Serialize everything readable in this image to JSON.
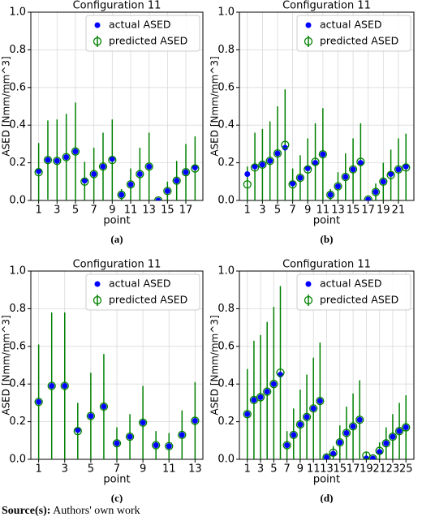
{
  "chart_data": [
    {
      "type": "errorbar",
      "title": "Configuration 11",
      "xlabel": "point",
      "ylabel": "ASED [Nmm/mm^3]",
      "caption": "(a)",
      "x": [
        1,
        2,
        3,
        4,
        5,
        6,
        7,
        8,
        9,
        10,
        11,
        12,
        13,
        14,
        15,
        16,
        17,
        18
      ],
      "series": [
        {
          "name": "actual ASED",
          "color": "#0000ff",
          "values": [
            0.155,
            0.215,
            0.21,
            0.23,
            0.26,
            0.105,
            0.14,
            0.18,
            0.22,
            0.03,
            0.085,
            0.14,
            0.18,
            0.0,
            0.05,
            0.105,
            0.15,
            0.175
          ]
        },
        {
          "name": "predicted ASED",
          "color": "#008000",
          "values": [
            0.15,
            0.215,
            0.21,
            0.23,
            0.26,
            0.1,
            0.14,
            0.18,
            0.215,
            0.03,
            0.085,
            0.14,
            0.18,
            0.0,
            0.05,
            0.105,
            0.15,
            0.17
          ],
          "errors": [
            0.155,
            0.21,
            0.22,
            0.23,
            0.26,
            0.105,
            0.14,
            0.18,
            0.215,
            0.03,
            0.085,
            0.14,
            0.18,
            0.0,
            0.05,
            0.105,
            0.15,
            0.17
          ]
        }
      ],
      "xlim": [
        0.15,
        18.85
      ],
      "xticks": [
        1,
        3,
        5,
        7,
        9,
        11,
        13,
        15,
        17
      ],
      "ylim": [
        0,
        1
      ],
      "yticks": [
        {
          "value": 0,
          "label": "0.0"
        },
        0.2,
        0.4,
        0.6,
        0.8,
        {
          "value": 1,
          "label": "1.0"
        }
      ],
      "grid": true,
      "legend": "upper right"
    },
    {
      "type": "errorbar",
      "title": "Configuration 11",
      "xlabel": "point",
      "ylabel": "ASED [Nmm/mm^3]",
      "caption": "(b)",
      "x": [
        1,
        2,
        3,
        4,
        5,
        6,
        7,
        8,
        9,
        10,
        11,
        12,
        13,
        14,
        15,
        16,
        17,
        18,
        19,
        20,
        21,
        22
      ],
      "series": [
        {
          "name": "actual ASED",
          "color": "#0000ff",
          "values": [
            0.14,
            0.18,
            0.19,
            0.21,
            0.25,
            0.28,
            0.09,
            0.12,
            0.17,
            0.2,
            0.245,
            0.03,
            0.075,
            0.125,
            0.165,
            0.2,
            0.005,
            0.045,
            0.1,
            0.14,
            0.165,
            0.18
          ]
        },
        {
          "name": "predicted ASED",
          "color": "#008000",
          "values": [
            0.085,
            0.175,
            0.19,
            0.21,
            0.25,
            0.295,
            0.085,
            0.12,
            0.165,
            0.205,
            0.245,
            0.03,
            0.075,
            0.125,
            0.165,
            0.205,
            0.005,
            0.045,
            0.1,
            0.135,
            0.165,
            0.175
          ],
          "errors": [
            0.095,
            0.185,
            0.19,
            0.21,
            0.25,
            0.295,
            0.085,
            0.12,
            0.165,
            0.205,
            0.245,
            0.03,
            0.075,
            0.125,
            0.165,
            0.205,
            0.005,
            0.045,
            0.1,
            0.135,
            0.165,
            0.18
          ]
        }
      ],
      "xlim": [
        -0.05,
        23.05
      ],
      "xticks": [
        1,
        3,
        5,
        7,
        9,
        11,
        13,
        15,
        17,
        19,
        21
      ],
      "ylim": [
        0,
        1
      ],
      "yticks": [
        {
          "value": 0,
          "label": "0.0"
        },
        0.2,
        0.4,
        0.6,
        0.8,
        {
          "value": 1,
          "label": "1.0"
        }
      ],
      "grid": true,
      "legend": "upper right"
    },
    {
      "type": "errorbar",
      "title": "Configuration 11",
      "xlabel": "point",
      "ylabel": "ASED [Nmm/mm^3]",
      "caption": "(c)",
      "x": [
        1,
        2,
        3,
        4,
        5,
        6,
        7,
        8,
        9,
        10,
        11,
        12,
        13
      ],
      "series": [
        {
          "name": "actual ASED",
          "color": "#0000ff",
          "values": [
            0.305,
            0.39,
            0.39,
            0.155,
            0.23,
            0.28,
            0.085,
            0.12,
            0.195,
            0.075,
            0.07,
            0.13,
            0.205
          ]
        },
        {
          "name": "predicted ASED",
          "color": "#008000",
          "values": [
            0.305,
            0.39,
            0.39,
            0.15,
            0.23,
            0.28,
            0.085,
            0.12,
            0.195,
            0.075,
            0.07,
            0.13,
            0.205
          ],
          "errors": [
            0.305,
            0.39,
            0.39,
            0.15,
            0.23,
            0.28,
            0.085,
            0.12,
            0.195,
            0.075,
            0.07,
            0.13,
            0.205
          ]
        }
      ],
      "xlim": [
        0.4,
        13.6
      ],
      "xticks": [
        1,
        3,
        5,
        7,
        9,
        11,
        13
      ],
      "ylim": [
        0,
        1
      ],
      "yticks": [
        {
          "value": 0,
          "label": "0.0"
        },
        0.2,
        0.4,
        0.6,
        0.8,
        {
          "value": 1,
          "label": "1.0"
        }
      ],
      "grid": true,
      "legend": "upper right"
    },
    {
      "type": "errorbar",
      "title": "Configuration 11",
      "xlabel": "point",
      "ylabel": "ASED [Nmm/mm^3]",
      "caption": "(d)",
      "x": [
        1,
        2,
        3,
        4,
        5,
        6,
        7,
        8,
        9,
        10,
        11,
        12,
        13,
        14,
        15,
        16,
        17,
        18,
        19,
        20,
        21,
        22,
        23,
        24,
        25
      ],
      "series": [
        {
          "name": "actual ASED",
          "color": "#0000ff",
          "values": [
            0.24,
            0.315,
            0.33,
            0.36,
            0.4,
            0.45,
            0.075,
            0.13,
            0.185,
            0.225,
            0.27,
            0.31,
            0.01,
            0.03,
            0.09,
            0.14,
            0.175,
            0.21,
            0.005,
            0.005,
            0.04,
            0.085,
            0.12,
            0.15,
            0.17
          ]
        },
        {
          "name": "predicted ASED",
          "color": "#008000",
          "values": [
            0.24,
            0.315,
            0.33,
            0.36,
            0.4,
            0.46,
            0.075,
            0.13,
            0.185,
            0.225,
            0.27,
            0.31,
            0.01,
            0.035,
            0.09,
            0.14,
            0.175,
            0.21,
            0.02,
            0.005,
            0.045,
            0.085,
            0.12,
            0.15,
            0.17
          ],
          "errors": [
            0.24,
            0.315,
            0.33,
            0.37,
            0.41,
            0.46,
            0.075,
            0.14,
            0.185,
            0.225,
            0.27,
            0.31,
            0.01,
            0.035,
            0.09,
            0.14,
            0.175,
            0.21,
            0.02,
            0.005,
            0.045,
            0.085,
            0.12,
            0.15,
            0.17
          ]
        }
      ],
      "xlim": [
        -0.2,
        26.2
      ],
      "xticks": [
        1,
        3,
        5,
        7,
        9,
        11,
        13,
        15,
        17,
        19,
        21,
        23,
        25
      ],
      "ylim": [
        0,
        1
      ],
      "yticks": [
        {
          "value": 0,
          "label": "0.0"
        },
        0.2,
        0.4,
        0.6,
        0.8,
        {
          "value": 1,
          "label": "1.0"
        }
      ],
      "grid": true,
      "legend": "upper right"
    }
  ],
  "source": {
    "label": "Source(s):",
    "text": "Authors' own work"
  }
}
